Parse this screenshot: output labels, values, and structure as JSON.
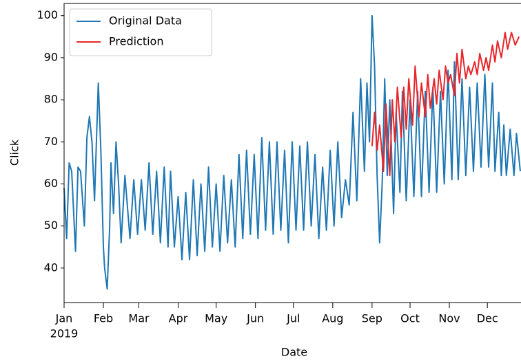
{
  "chart_data": {
    "type": "line",
    "xlabel": "Date",
    "ylabel": "Click",
    "year_label": "2019",
    "xlim": [
      0,
      360
    ],
    "ylim": [
      31.8,
      102.9
    ],
    "xticks": [
      {
        "value": 0,
        "label": "Jan"
      },
      {
        "value": 31,
        "label": "Feb"
      },
      {
        "value": 59,
        "label": "Mar"
      },
      {
        "value": 90,
        "label": "Apr"
      },
      {
        "value": 120,
        "label": "May"
      },
      {
        "value": 151,
        "label": "Jun"
      },
      {
        "value": 181,
        "label": "Jul"
      },
      {
        "value": 212,
        "label": "Aug"
      },
      {
        "value": 243,
        "label": "Sep"
      },
      {
        "value": 273,
        "label": "Oct"
      },
      {
        "value": 304,
        "label": "Nov"
      },
      {
        "value": 334,
        "label": "Dec"
      }
    ],
    "yticks": [
      40,
      50,
      60,
      70,
      80,
      90,
      100
    ],
    "legend": "upper left",
    "series": [
      {
        "name": "Original Data",
        "color": "#1f77b4",
        "x": [
          0,
          2,
          4,
          6,
          9,
          11,
          13,
          16,
          18,
          20,
          22,
          24,
          27,
          29,
          31,
          32,
          34,
          36,
          37,
          39,
          41,
          43,
          45,
          48,
          52,
          55,
          58,
          61,
          64,
          67,
          70,
          73,
          76,
          79,
          82,
          84,
          87,
          90,
          93,
          96,
          99,
          102,
          105,
          108,
          111,
          114,
          117,
          120,
          123,
          126,
          129,
          132,
          135,
          138,
          141,
          144,
          147,
          150,
          153,
          156,
          159,
          162,
          165,
          168,
          171,
          174,
          177,
          180,
          183,
          186,
          189,
          192,
          195,
          198,
          201,
          204,
          207,
          210,
          213,
          216,
          219,
          222,
          225,
          228,
          231,
          234,
          237,
          239,
          241,
          243,
          245,
          247,
          249,
          251,
          253,
          255,
          257,
          260,
          262,
          265,
          267,
          270,
          273,
          276,
          279,
          282,
          285,
          288,
          291,
          294,
          297,
          300,
          303,
          306,
          308,
          311,
          314,
          317,
          320,
          323,
          326,
          329,
          332,
          335,
          338,
          340,
          343,
          345,
          347,
          349,
          352,
          355,
          357,
          360
        ],
        "values": [
          59,
          47,
          65,
          63,
          44,
          64,
          63,
          50,
          71,
          76,
          70,
          56,
          84,
          68,
          45,
          40,
          35,
          50,
          65,
          53,
          70,
          60,
          46,
          62,
          47,
          61,
          48,
          61,
          49,
          65,
          48,
          63,
          46,
          64,
          45,
          63,
          45,
          57,
          42,
          58,
          42,
          61,
          43,
          60,
          44,
          64,
          45,
          60,
          44,
          62,
          46,
          61,
          45,
          67,
          47,
          68,
          48,
          67,
          47,
          71,
          49,
          70,
          48,
          70,
          49,
          68,
          46,
          70,
          49,
          69,
          49,
          70,
          50,
          67,
          47,
          64,
          49,
          68,
          50,
          70,
          52,
          61,
          55,
          77,
          56,
          85,
          63,
          84,
          70,
          100,
          88,
          62,
          46,
          60,
          85,
          62,
          80,
          53,
          77,
          58,
          82,
          56,
          80,
          57,
          82,
          57,
          82,
          58,
          83,
          58,
          82,
          60,
          87,
          61,
          89,
          61,
          85,
          62,
          83,
          63,
          84,
          64,
          86,
          64,
          84,
          63,
          77,
          62,
          74,
          62,
          73,
          62,
          72,
          63
        ]
      },
      {
        "name": "Prediction",
        "color": "#e8262a",
        "x": [
          243,
          245,
          247,
          249,
          252,
          254,
          257,
          259,
          261,
          263,
          266,
          268,
          270,
          272,
          275,
          277,
          280,
          282,
          285,
          287,
          289,
          292,
          294,
          296,
          299,
          301,
          303,
          305,
          308,
          310,
          312,
          314,
          317,
          319,
          321,
          324,
          326,
          328,
          331,
          333,
          335,
          338,
          340,
          342,
          345,
          348,
          350,
          353,
          356,
          359
        ],
        "values": [
          69,
          77,
          68,
          74,
          63,
          79,
          62,
          80,
          70,
          83,
          71,
          83,
          73,
          85,
          74,
          88,
          76,
          84,
          76,
          86,
          78,
          85,
          79,
          87,
          80,
          88,
          84,
          86,
          81,
          91,
          84,
          92,
          85,
          88,
          86,
          89,
          86,
          91,
          87,
          90,
          87,
          93,
          89,
          94,
          90,
          96,
          92,
          96,
          93,
          95
        ]
      }
    ]
  }
}
